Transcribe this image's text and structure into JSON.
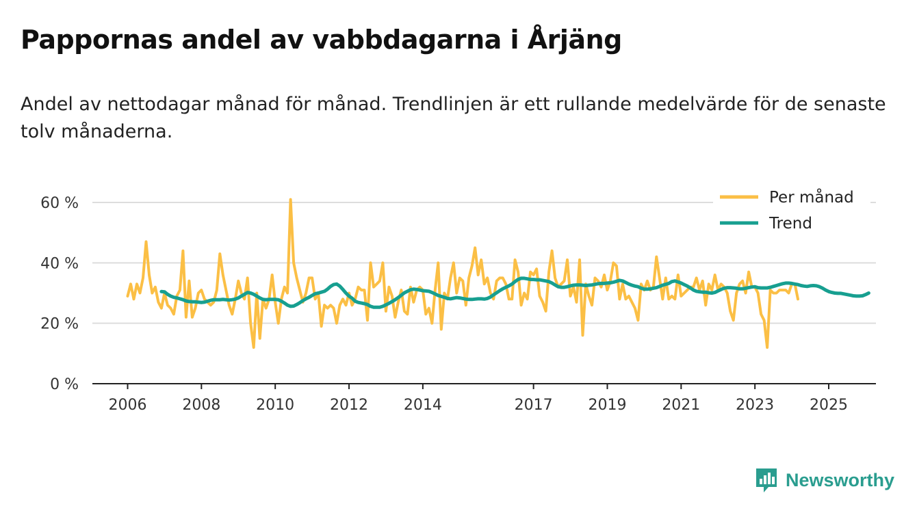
{
  "page": {
    "title": "Pappornas andel av vabbdagarna i Årjäng",
    "subtitle": "Andel av nettodagar månad för månad. Trendlinjen är ett rullande medelvärde för de senaste tolv månaderna.",
    "brand": "Newsworthy"
  },
  "colors": {
    "monthly": "#fbbf45",
    "trend": "#179f90",
    "grid": "#dddddd",
    "axis": "#222222",
    "brand": "#2a9d8f"
  },
  "chart_data": {
    "type": "line",
    "title": "Pappornas andel av vabbdagarna i Årjäng",
    "xlabel": "",
    "ylabel": "",
    "x_start": 2006.0,
    "x_step": 0.08333,
    "xlim": [
      2006,
      2025.5
    ],
    "ylim": [
      0,
      60
    ],
    "y_ticks": [
      0,
      20,
      40,
      60
    ],
    "y_tick_labels": [
      "0 %",
      "20 %",
      "40 %",
      "60 %"
    ],
    "x_ticks": [
      2006,
      2008,
      2010,
      2012,
      2014,
      2017,
      2019,
      2021,
      2023,
      2025
    ],
    "x_tick_labels": [
      "2006",
      "2008",
      "2010",
      "2012",
      "2014",
      "2017",
      "2019",
      "2021",
      "2023",
      "2025"
    ],
    "grid": true,
    "legend": "top-right",
    "series": [
      {
        "name": "Per månad",
        "values": [
          29,
          33,
          28,
          33,
          30,
          35,
          47,
          36,
          30,
          32,
          27,
          25,
          30,
          26,
          25,
          23,
          29,
          31,
          44,
          22,
          34,
          22,
          25,
          30,
          31,
          28,
          27,
          26,
          27,
          31,
          43,
          36,
          31,
          26,
          23,
          28,
          34,
          30,
          28,
          35,
          20,
          12,
          30,
          15,
          28,
          25,
          28,
          36,
          27,
          20,
          28,
          32,
          30,
          61,
          40,
          35,
          31,
          27,
          30,
          35,
          35,
          28,
          30,
          19,
          26,
          25,
          26,
          25,
          20,
          26,
          28,
          26,
          30,
          26,
          28,
          32,
          31,
          31,
          21,
          40,
          32,
          33,
          34,
          40,
          24,
          32,
          29,
          22,
          27,
          31,
          24,
          23,
          32,
          27,
          31,
          32,
          31,
          23,
          25,
          20,
          31,
          40,
          18,
          30,
          28,
          35,
          40,
          30,
          35,
          34,
          26,
          35,
          39,
          45,
          36,
          41,
          33,
          35,
          30,
          28,
          34,
          35,
          35,
          33,
          28,
          28,
          41,
          37,
          26,
          30,
          28,
          37,
          36,
          38,
          29,
          27,
          24,
          37,
          44,
          35,
          32,
          33,
          34,
          41,
          29,
          32,
          27,
          41,
          16,
          33,
          29,
          26,
          35,
          34,
          32,
          36,
          31,
          34,
          40,
          39,
          28,
          33,
          28,
          29,
          27,
          25,
          21,
          33,
          31,
          34,
          31,
          32,
          42,
          35,
          28,
          35,
          28,
          29,
          28,
          36,
          29,
          30,
          31,
          32,
          32,
          35,
          31,
          34,
          26,
          33,
          31,
          36,
          31,
          33,
          32,
          30,
          24,
          21,
          30,
          33,
          34,
          30,
          37,
          32,
          32,
          30,
          23,
          21,
          12,
          31,
          30,
          30,
          31,
          31,
          31,
          30,
          33,
          33,
          28
        ],
        "color": "#fbbf45"
      },
      {
        "name": "Trend",
        "start_index": 11,
        "values": [
          30.5,
          30.4,
          29.6,
          29.0,
          28.6,
          28.4,
          28.1,
          27.8,
          27.4,
          27.2,
          27.1,
          27.1,
          27.0,
          26.9,
          27.0,
          27.3,
          27.6,
          27.8,
          27.8,
          27.8,
          27.9,
          27.8,
          27.7,
          27.8,
          28.0,
          28.4,
          29.0,
          29.6,
          30.2,
          30.0,
          29.6,
          29.0,
          28.4,
          27.9,
          27.8,
          27.9,
          27.9,
          27.9,
          27.8,
          27.3,
          26.7,
          26.0,
          25.6,
          25.7,
          26.2,
          26.8,
          27.5,
          28.1,
          28.6,
          29.2,
          29.8,
          30.0,
          30.3,
          30.6,
          31.3,
          32.2,
          32.8,
          33.0,
          32.3,
          31.2,
          30.0,
          29.0,
          28.3,
          27.3,
          26.9,
          26.7,
          26.5,
          26.2,
          25.6,
          25.3,
          25.3,
          25.3,
          25.6,
          26.1,
          26.6,
          27.2,
          27.8,
          28.5,
          29.3,
          30.1,
          30.6,
          31.1,
          31.3,
          31.2,
          31.0,
          30.8,
          30.7,
          30.6,
          30.2,
          29.7,
          29.2,
          28.9,
          28.6,
          28.2,
          28.1,
          28.3,
          28.5,
          28.4,
          28.2,
          28.0,
          27.9,
          27.9,
          28.0,
          28.1,
          28.1,
          28.0,
          28.2,
          28.7,
          29.4,
          30.1,
          30.8,
          31.4,
          31.9,
          32.4,
          33.0,
          33.8,
          34.5,
          34.9,
          34.9,
          34.7,
          34.5,
          34.5,
          34.4,
          34.4,
          34.2,
          34.0,
          33.8,
          33.3,
          32.7,
          32.1,
          31.9,
          31.9,
          32.1,
          32.4,
          32.6,
          32.7,
          32.7,
          32.6,
          32.5,
          32.6,
          32.7,
          32.9,
          33.1,
          33.2,
          33.2,
          33.3,
          33.4,
          33.6,
          33.9,
          34.2,
          34.0,
          33.5,
          33.0,
          32.6,
          32.3,
          32.1,
          31.6,
          31.3,
          31.3,
          31.4,
          31.6,
          31.8,
          32.2,
          32.6,
          32.9,
          33.2,
          33.8,
          34.0,
          33.7,
          33.3,
          32.8,
          32.3,
          31.7,
          31.0,
          30.6,
          30.4,
          30.3,
          30.3,
          30.1,
          30.0,
          30.2,
          30.7,
          31.2,
          31.6,
          31.8,
          31.8,
          31.7,
          31.6,
          31.4,
          31.4,
          31.6,
          31.8,
          32.0,
          32.1,
          31.8,
          31.7,
          31.7,
          31.7,
          31.9,
          32.2,
          32.5,
          32.8,
          33.1,
          33.3,
          33.3,
          33.2,
          33.0,
          32.8,
          32.5,
          32.3,
          32.2,
          32.4,
          32.5,
          32.4,
          32.1,
          31.6,
          31.0,
          30.5,
          30.2,
          30.0,
          29.9,
          29.9,
          29.7,
          29.5,
          29.3,
          29.1,
          29.0,
          29.0,
          29.1,
          29.5,
          30.0
        ],
        "color": "#179f90"
      }
    ]
  }
}
